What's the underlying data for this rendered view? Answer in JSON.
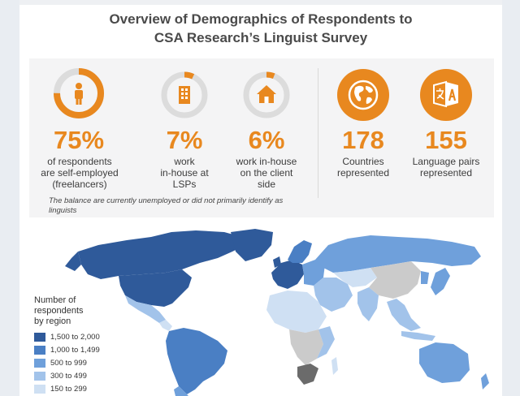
{
  "title": {
    "line1": "Overview of Demographics of Respondents to",
    "line2": "CSA Research’s Linguist Survey"
  },
  "colors": {
    "accent": "#e8881f",
    "ring_track": "#dcdcdc",
    "dark_blue": "#2f5a9a",
    "mid_blue": "#4a7fc4",
    "blue": "#6fa0db",
    "light_blue": "#a2c3ea",
    "pale_blue": "#cfe0f3",
    "no_data": "#cbcbcb"
  },
  "stats": [
    {
      "value": "75%",
      "percent": 75,
      "icon": "person-icon",
      "label": "of respondents\nare self-employed\n(freelancers)"
    },
    {
      "value": "7%",
      "percent": 7,
      "icon": "building-icon",
      "label": "work\nin-house at\nLSPs"
    },
    {
      "value": "6%",
      "percent": 6,
      "icon": "house-icon",
      "label": "work in-house\non the client\nside"
    },
    {
      "value": "178",
      "icon": "globe-icon",
      "label": "Countries\nrepresented"
    },
    {
      "value": "155",
      "icon": "translate-icon",
      "label": "Language pairs\nrepresented"
    }
  ],
  "note": "The balance are currently unemployed or did not primarily identify as linguists",
  "legend": {
    "title": "Number of\nrespondents\nby region",
    "items": [
      {
        "label": "1,500 to 2,000",
        "color": "#2f5a9a"
      },
      {
        "label": "1,000 to 1,499",
        "color": "#4a7fc4"
      },
      {
        "label": "500 to 999",
        "color": "#6fa0db"
      },
      {
        "label": "300 to 499",
        "color": "#a2c3ea"
      },
      {
        "label": "150 to 299",
        "color": "#cfe0f3"
      }
    ]
  }
}
